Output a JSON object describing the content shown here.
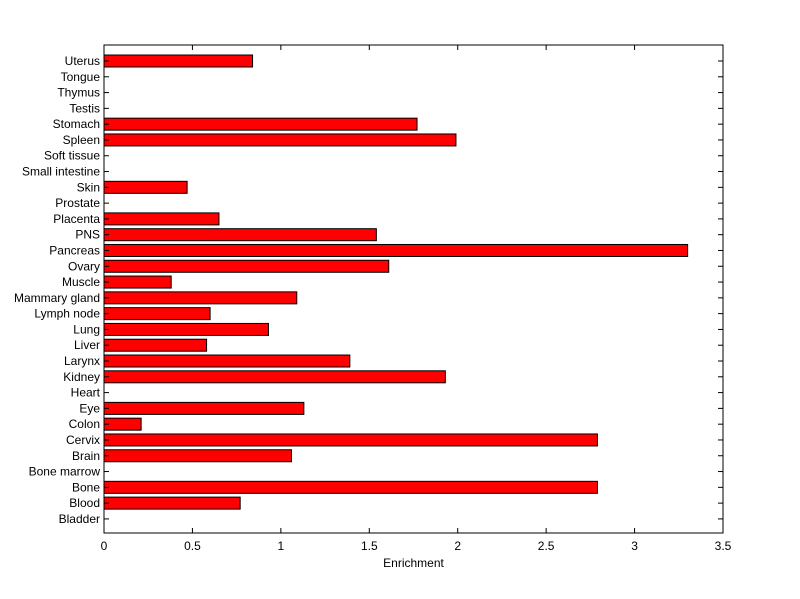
{
  "chart_data": {
    "type": "bar",
    "orientation": "horizontal",
    "xlabel": "Enrichment",
    "ylabel": "",
    "title": "",
    "xlim": [
      0,
      3.5
    ],
    "xticks": [
      0,
      0.5,
      1,
      1.5,
      2,
      2.5,
      3,
      3.5
    ],
    "xtick_labels": [
      "0",
      "0.5",
      "1",
      "1.5",
      "2",
      "2.5",
      "3",
      "3.5"
    ],
    "grid": false,
    "legend": "none",
    "bar_color": "#ff0000",
    "bar_edge_color": "#000000",
    "categories": [
      "Uterus",
      "Tongue",
      "Thymus",
      "Testis",
      "Stomach",
      "Spleen",
      "Soft tissue",
      "Small intestine",
      "Skin",
      "Prostate",
      "Placenta",
      "PNS",
      "Pancreas",
      "Ovary",
      "Muscle",
      "Mammary gland",
      "Lymph node",
      "Lung",
      "Liver",
      "Larynx",
      "Kidney",
      "Heart",
      "Eye",
      "Colon",
      "Cervix",
      "Brain",
      "Bone marrow",
      "Bone",
      "Blood",
      "Bladder"
    ],
    "values": [
      0.84,
      0,
      0,
      0,
      1.77,
      1.99,
      0,
      0,
      0.47,
      0,
      0.65,
      1.54,
      3.3,
      1.61,
      0.38,
      1.09,
      0.6,
      0.93,
      0.58,
      1.39,
      1.93,
      0,
      1.13,
      0.21,
      2.79,
      1.06,
      0,
      2.79,
      0.77,
      0
    ]
  }
}
